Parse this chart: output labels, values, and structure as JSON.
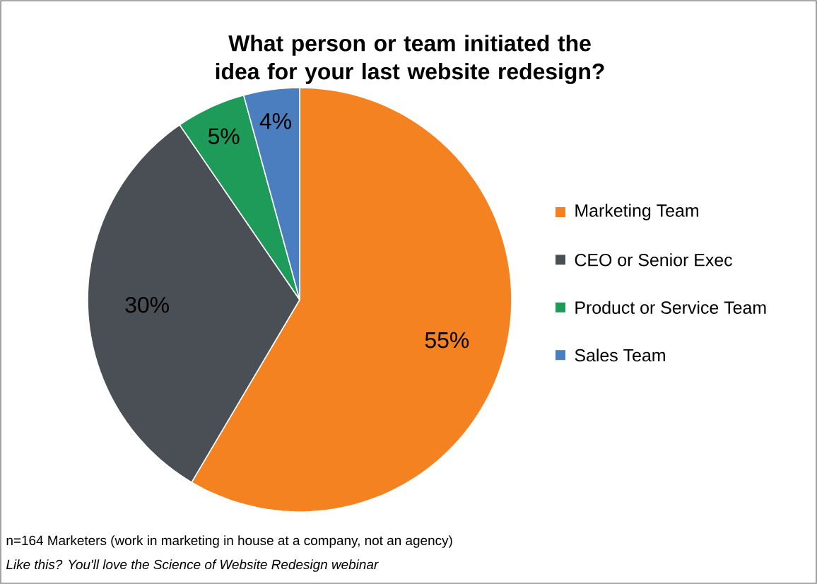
{
  "chart_data": {
    "type": "pie",
    "title": "What person or team initiated the idea for your last website redesign?",
    "categories": [
      "Marketing Team",
      "CEO or Senior Exec",
      "Product or Service Team",
      "Sales Team"
    ],
    "values": [
      55,
      30,
      5,
      4
    ],
    "value_labels": [
      "55%",
      "30%",
      "5%",
      "4%"
    ],
    "colors": [
      "#f58220",
      "#4a4f55",
      "#1e9a59",
      "#4a7ebf"
    ],
    "legend": "right",
    "annotations": [
      "n=164 Marketers (work in marketing in house at a company, not an agency)",
      "*Like this?  You'll love the Science of Website Redesign webinar*"
    ]
  }
}
